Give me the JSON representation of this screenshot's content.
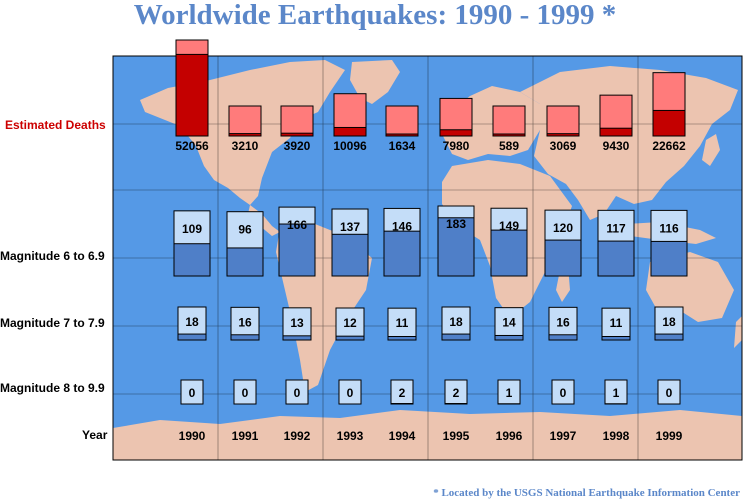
{
  "chart_data": {
    "type": "bar",
    "title": "Worldwide Earthquakes: 1990 - 1999 *",
    "footnote": "* Located by the USGS National Earthquake Information Center",
    "row_labels": {
      "deaths": "Estimated Deaths",
      "mag6": "Magnitude 6 to 6.9",
      "mag7": "Magnitude 7 to 7.9",
      "mag8": "Magnitude 8 to 9.9",
      "year": "Year"
    },
    "categories": [
      "1990",
      "1991",
      "1992",
      "1993",
      "1994",
      "1995",
      "1996",
      "1997",
      "1998",
      "1999"
    ],
    "series": [
      {
        "name": "Estimated Deaths",
        "values": [
          52056,
          3210,
          3920,
          10096,
          1634,
          7980,
          589,
          3069,
          9430,
          22662
        ]
      },
      {
        "name": "Magnitude 6 to 6.9",
        "values": [
          109,
          96,
          166,
          137,
          146,
          183,
          149,
          120,
          117,
          116
        ]
      },
      {
        "name": "Magnitude 7 to 7.9",
        "values": [
          18,
          16,
          13,
          12,
          11,
          18,
          14,
          16,
          11,
          18
        ]
      },
      {
        "name": "Magnitude 8 to 9.9",
        "values": [
          0,
          0,
          0,
          0,
          2,
          2,
          1,
          0,
          1,
          0
        ]
      }
    ],
    "colors": {
      "ocean": "#5599e6",
      "land": "#ecc4b0",
      "deaths_dark": "#c40000",
      "deaths_light": "#ff7b7b",
      "mag_dark": "#4f7fc8",
      "mag_light": "#c4ddf8",
      "title": "#5b87c9",
      "deaths_label": "#cc0000"
    }
  }
}
